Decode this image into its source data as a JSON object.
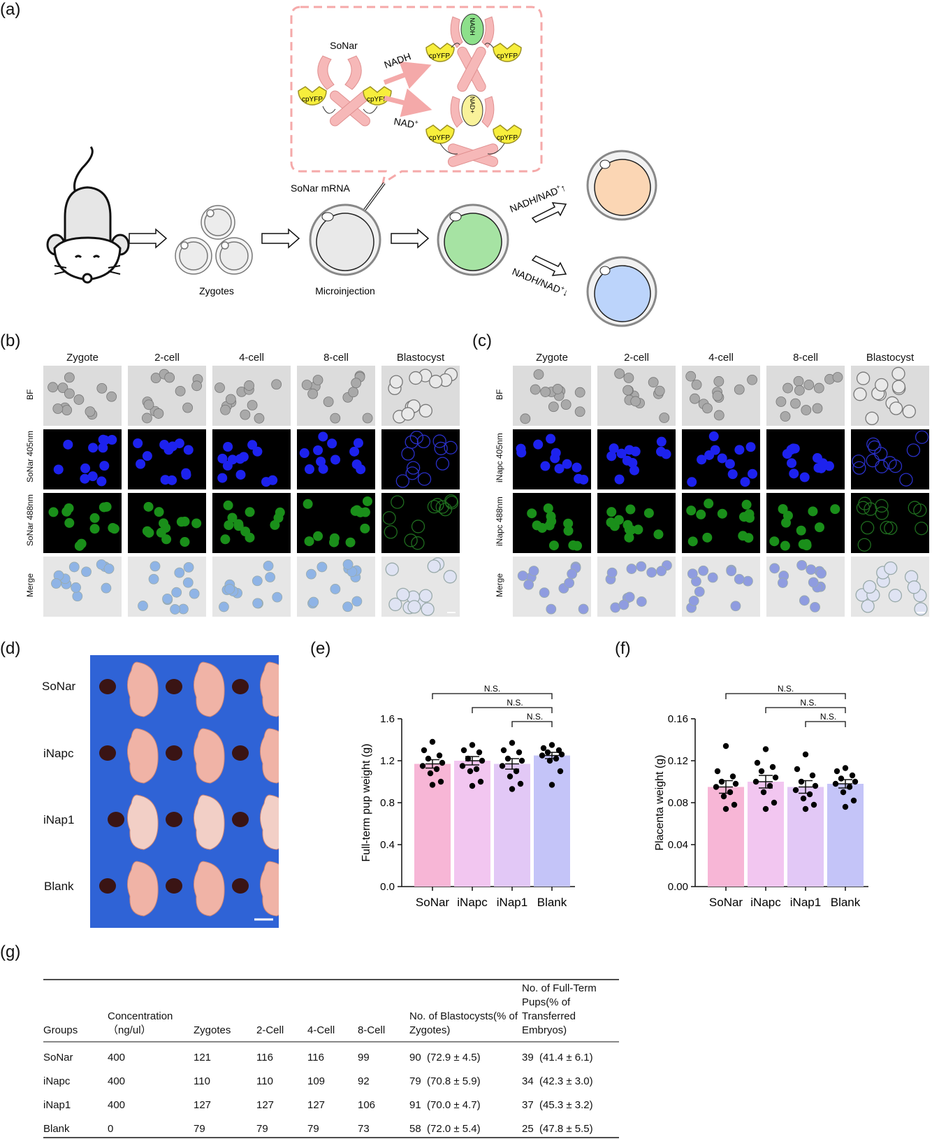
{
  "panels": {
    "a": "(a)",
    "b": "(b)",
    "c": "(c)",
    "d": "(d)",
    "e": "(e)",
    "f": "(f)",
    "g": "(g)"
  },
  "schematic": {
    "sensor_name": "SoNar",
    "domain_label": "cpYFP",
    "nadh": "NADH",
    "nad_plus": "NAD",
    "nad_sup": "+",
    "ligand_nadh_vertical": "NADH",
    "ligand_nad_vertical": "NAD+",
    "mrna": "SoNar mRNA",
    "zygotes": "Zygotes",
    "microinjection": "Microinjection",
    "ratio_up": "NADH/NAD",
    "ratio_down": "NADH/NAD",
    "up_arrow": "↑",
    "down_arrow": "↓"
  },
  "imaging": {
    "stages": [
      "Zygote",
      "2-cell",
      "4-cell",
      "8-cell",
      "Blastocyst"
    ],
    "b_rows": [
      "BF",
      "SoNar 405nm",
      "SoNar 488nm",
      "Merge"
    ],
    "c_rows": [
      "BF",
      "iNapc 405nm",
      "iNapc 488nm",
      "Merge"
    ]
  },
  "pups": {
    "rows": [
      "SoNar",
      "iNapc",
      "iNap1",
      "Blank"
    ]
  },
  "chart_data": [
    {
      "type": "bar",
      "panel": "e",
      "categories": [
        "SoNar",
        "iNapc",
        "iNap1",
        "Blank"
      ],
      "values": [
        1.17,
        1.2,
        1.17,
        1.25
      ],
      "sem": [
        0.04,
        0.04,
        0.05,
        0.03
      ],
      "points": [
        [
          1.38,
          1.3,
          1.25,
          1.22,
          1.18,
          1.15,
          1.12,
          1.08,
          1.0,
          0.97
        ],
        [
          1.35,
          1.3,
          1.28,
          1.22,
          1.2,
          1.15,
          1.12,
          1.1,
          1.0,
          0.96
        ],
        [
          1.37,
          1.3,
          1.28,
          1.22,
          1.2,
          1.15,
          1.1,
          1.05,
          0.98,
          0.93
        ],
        [
          1.35,
          1.32,
          1.3,
          1.28,
          1.26,
          1.25,
          1.22,
          1.2,
          1.1,
          0.97
        ]
      ],
      "ylabel": "Full-term pup weight (g)",
      "ylim": [
        0,
        1.6
      ],
      "yticks": [
        "0.0",
        "0.4",
        "0.8",
        "1.2",
        "1.6"
      ],
      "colors": [
        "#f7b6d6",
        "#f2c6f0",
        "#e2c8f6",
        "#c4c4f8"
      ],
      "significance": [
        "N.S.",
        "N.S.",
        "N.S."
      ]
    },
    {
      "type": "bar",
      "panel": "f",
      "categories": [
        "SoNar",
        "iNapc",
        "iNap1",
        "Blank"
      ],
      "values": [
        0.095,
        0.1,
        0.095,
        0.098
      ],
      "sem": [
        0.006,
        0.006,
        0.006,
        0.004
      ],
      "points": [
        [
          0.134,
          0.11,
          0.105,
          0.1,
          0.098,
          0.095,
          0.09,
          0.086,
          0.078,
          0.074
        ],
        [
          0.131,
          0.118,
          0.114,
          0.11,
          0.104,
          0.1,
          0.096,
          0.09,
          0.08,
          0.074
        ],
        [
          0.126,
          0.112,
          0.106,
          0.1,
          0.096,
          0.092,
          0.088,
          0.084,
          0.078,
          0.074
        ],
        [
          0.113,
          0.11,
          0.106,
          0.103,
          0.1,
          0.098,
          0.095,
          0.09,
          0.082,
          0.076
        ]
      ],
      "ylabel": "Placenta weight (g)",
      "ylim": [
        0,
        0.16
      ],
      "yticks": [
        "0.00",
        "0.04",
        "0.08",
        "0.12",
        "0.16"
      ],
      "colors": [
        "#f7b6d6",
        "#f2c6f0",
        "#e2c8f6",
        "#c4c4f8"
      ],
      "significance": [
        "N.S.",
        "N.S.",
        "N.S."
      ]
    }
  ],
  "table": {
    "headers": [
      "Groups",
      "Concentration （ng/ul）",
      "Zygotes",
      "2-Cell",
      "4-Cell",
      "8-Cell",
      "No. of Blastocysts(% of Zygotes)",
      "No. of Full-Term Pups(% of Transferred Embryos)"
    ],
    "rows": [
      [
        "SoNar",
        "400",
        "121",
        "116",
        "116",
        "99",
        "90  (72.9 ± 4.5)",
        "39  (41.4 ± 6.1)"
      ],
      [
        "iNapc",
        "400",
        "110",
        "110",
        "109",
        "92",
        "79  (70.8 ± 5.9)",
        "34  (42.3 ± 3.0)"
      ],
      [
        "iNap1",
        "400",
        "127",
        "127",
        "127",
        "106",
        "91  (70.0 ± 4.7)",
        "37  (45.3 ± 3.2)"
      ],
      [
        "Blank",
        "0",
        "79",
        "79",
        "79",
        "73",
        "58  (72.0 ± 5.4)",
        "25  (47.8 ± 5.5)"
      ]
    ]
  }
}
